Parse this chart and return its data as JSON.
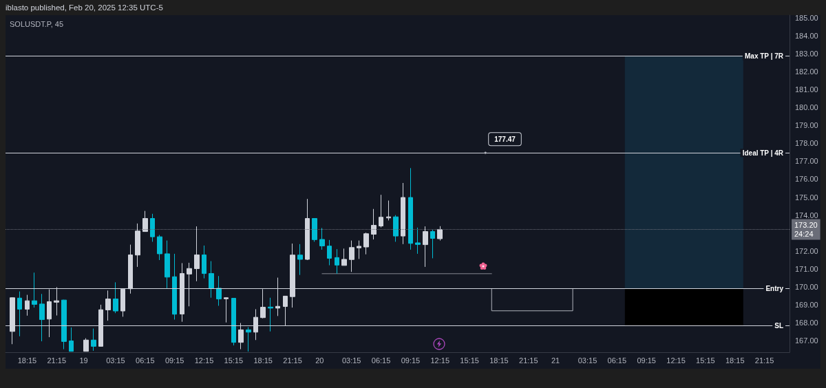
{
  "chart_data": {
    "type": "candlestick",
    "title": "iblasto published, Feb 20, 2025 12:35 UTC-5",
    "subtitle": "SOLUSDT.P, 45",
    "series": [
      {
        "x": [
          "2025-02-18T16:45",
          "2025-02-18T17:30",
          "2025-02-18T18:15",
          "2025-02-18T19:00",
          "2025-02-18T19:45",
          "2025-02-18T20:30",
          "2025-02-18T21:15",
          "2025-02-18T22:00",
          "2025-02-18T22:45",
          "2025-02-19T00:15",
          "2025-02-19T01:00",
          "2025-02-19T01:45",
          "2025-02-19T02:30",
          "2025-02-19T03:15",
          "2025-02-19T04:00",
          "2025-02-19T04:45",
          "2025-02-19T05:30",
          "2025-02-19T06:15",
          "2025-02-19T07:00",
          "2025-02-19T07:45",
          "2025-02-19T08:30",
          "2025-02-19T09:15",
          "2025-02-19T10:00",
          "2025-02-19T10:45",
          "2025-02-19T11:30",
          "2025-02-19T12:15",
          "2025-02-19T13:00",
          "2025-02-19T13:45",
          "2025-02-19T14:30",
          "2025-02-19T15:15",
          "2025-02-19T16:00",
          "2025-02-19T16:45",
          "2025-02-19T17:30",
          "2025-02-19T18:15",
          "2025-02-19T19:00",
          "2025-02-19T19:45",
          "2025-02-19T20:30",
          "2025-02-19T21:15",
          "2025-02-19T22:00",
          "2025-02-19T22:45",
          "2025-02-19T23:30",
          "2025-02-20T00:15",
          "2025-02-20T01:00",
          "2025-02-20T01:45",
          "2025-02-20T02:30",
          "2025-02-20T03:15",
          "2025-02-20T04:00",
          "2025-02-20T04:45",
          "2025-02-20T05:30",
          "2025-02-20T06:15",
          "2025-02-20T07:00",
          "2025-02-20T07:45",
          "2025-02-20T08:30",
          "2025-02-20T09:15",
          "2025-02-20T10:00",
          "2025-02-20T10:45",
          "2025-02-20T11:30",
          "2025-02-20T12:15"
        ],
        "ohlc": [
          [
            167.51,
            169.41,
            166.8,
            169.39
          ],
          [
            169.37,
            169.74,
            167.24,
            168.75
          ],
          [
            168.75,
            169.55,
            168.39,
            169.22
          ],
          [
            169.22,
            170.79,
            168.84,
            169.02
          ],
          [
            169.04,
            169.6,
            166.96,
            168.17
          ],
          [
            168.2,
            169.86,
            167.19,
            169.17
          ],
          [
            169.14,
            169.98,
            168.4,
            169.22
          ],
          [
            169.26,
            169.28,
            166.52,
            166.95
          ],
          [
            166.98,
            167.73,
            166.4,
            166.4
          ],
          [
            166.4,
            167.13,
            166.4,
            167.03
          ],
          [
            167.03,
            167.67,
            166.43,
            166.68
          ],
          [
            166.68,
            169.0,
            166.68,
            168.72
          ],
          [
            168.71,
            169.79,
            168.11,
            169.32
          ],
          [
            169.32,
            170.25,
            168.53,
            168.65
          ],
          [
            168.65,
            169.87,
            168.33,
            169.87
          ],
          [
            169.89,
            172.35,
            169.62,
            171.78
          ],
          [
            171.77,
            173.53,
            171.11,
            173.11
          ],
          [
            173.08,
            174.23,
            173.08,
            173.81
          ],
          [
            173.81,
            174.07,
            172.51,
            172.79
          ],
          [
            172.79,
            172.89,
            171.49,
            171.84
          ],
          [
            171.84,
            172.58,
            169.92,
            170.54
          ],
          [
            170.56,
            171.84,
            168.17,
            168.47
          ],
          [
            168.48,
            171.32,
            168.05,
            170.74
          ],
          [
            170.71,
            171.34,
            168.91,
            171.02
          ],
          [
            171.01,
            173.37,
            170.31,
            171.78
          ],
          [
            171.78,
            172.3,
            170.47,
            170.74
          ],
          [
            170.74,
            171.43,
            169.39,
            169.92
          ],
          [
            169.92,
            170.6,
            168.94,
            169.32
          ],
          [
            169.33,
            169.41,
            168.01,
            169.39
          ],
          [
            169.36,
            169.36,
            166.73,
            166.9
          ],
          [
            166.9,
            167.98,
            166.52,
            167.6
          ],
          [
            167.6,
            167.75,
            166.39,
            167.47
          ],
          [
            167.47,
            168.75,
            167.03,
            168.3
          ],
          [
            168.28,
            169.87,
            168.24,
            168.86
          ],
          [
            168.87,
            169.39,
            167.51,
            168.81
          ],
          [
            168.81,
            170.51,
            168.37,
            168.91
          ],
          [
            168.9,
            169.48,
            167.82,
            169.48
          ],
          [
            169.45,
            172.41,
            168.84,
            171.77
          ],
          [
            171.77,
            172.38,
            170.66,
            171.53
          ],
          [
            171.53,
            174.9,
            171.49,
            173.81
          ],
          [
            173.81,
            173.81,
            172.51,
            172.63
          ],
          [
            172.64,
            173.28,
            172.07,
            172.28
          ],
          [
            172.27,
            172.61,
            171.2,
            171.59
          ],
          [
            171.63,
            172.1,
            170.73,
            171.21
          ],
          [
            171.19,
            172.13,
            171.19,
            171.53
          ],
          [
            171.52,
            172.58,
            170.83,
            172.19
          ],
          [
            172.17,
            172.58,
            171.55,
            172.26
          ],
          [
            172.22,
            173.02,
            171.81,
            172.96
          ],
          [
            172.93,
            174.34,
            172.64,
            173.43
          ],
          [
            173.39,
            175.13,
            173.31,
            173.88
          ],
          [
            173.84,
            174.81,
            173.7,
            173.9
          ],
          [
            173.9,
            174.0,
            172.51,
            172.83
          ],
          [
            172.83,
            175.79,
            172.38,
            174.98
          ],
          [
            174.98,
            176.62,
            172.07,
            172.42
          ],
          [
            172.45,
            173.3,
            171.84,
            172.36
          ],
          [
            172.35,
            173.37,
            171.11,
            173.08
          ],
          [
            173.08,
            173.21,
            171.59,
            172.7
          ],
          [
            172.68,
            173.38,
            172.58,
            173.2
          ]
        ],
        "colors": [
          "#d1d4dc",
          "#00bcd4",
          "#d1d4dc",
          "#00bcd4",
          "#00bcd4",
          "#d1d4dc",
          "#d1d4dc",
          "#00bcd4",
          "#00bcd4",
          "#d1d4dc",
          "#00bcd4",
          "#d1d4dc",
          "#d1d4dc",
          "#00bcd4",
          "#d1d4dc",
          "#d1d4dc",
          "#d1d4dc",
          "#d1d4dc",
          "#00bcd4",
          "#00bcd4",
          "#00bcd4",
          "#00bcd4",
          "#d1d4dc",
          "#d1d4dc",
          "#d1d4dc",
          "#00bcd4",
          "#00bcd4",
          "#00bcd4",
          "#d1d4dc",
          "#00bcd4",
          "#d1d4dc",
          "#00bcd4",
          "#d1d4dc",
          "#d1d4dc",
          "#00bcd4",
          "#d1d4dc",
          "#d1d4dc",
          "#d1d4dc",
          "#00bcd4",
          "#d1d4dc",
          "#00bcd4",
          "#00bcd4",
          "#00bcd4",
          "#00bcd4",
          "#d1d4dc",
          "#d1d4dc",
          "#d1d4dc",
          "#d1d4dc",
          "#d1d4dc",
          "#d1d4dc",
          "#d1d4dc",
          "#00bcd4",
          "#d1d4dc",
          "#00bcd4",
          "#00bcd4",
          "#d1d4dc",
          "#00bcd4",
          "#d1d4dc"
        ]
      },
      {
        "type": "line",
        "x": [
          "2025-02-20T00:15",
          "2025-02-20T17:30"
        ],
        "values": [
          170.73,
          170.73
        ],
        "color": "#868993"
      },
      {
        "type": "line",
        "x": [
          "2025-02-20T17:30",
          "2025-02-20T17:30",
          "2025-02-21T01:45",
          "2025-02-21T01:45"
        ],
        "values": [
          169.9,
          168.66,
          168.66,
          169.9
        ],
        "color": "#b2b5be"
      }
    ],
    "xlim": [
      "2025-02-18T16:03",
      "2025-02-21T23:48"
    ],
    "xticks": [
      {
        "value": "2025-02-18T18:15",
        "label": "18:15"
      },
      {
        "value": "2025-02-18T21:15",
        "label": "21:15"
      },
      {
        "value": "2025-02-19",
        "label": "19"
      },
      {
        "value": "2025-02-19T03:15",
        "label": "03:15"
      },
      {
        "value": "2025-02-19T06:15",
        "label": "06:15"
      },
      {
        "value": "2025-02-19T09:15",
        "label": "09:15"
      },
      {
        "value": "2025-02-19T12:15",
        "label": "12:15"
      },
      {
        "value": "2025-02-19T15:15",
        "label": "15:15"
      },
      {
        "value": "2025-02-19T18:15",
        "label": "18:15"
      },
      {
        "value": "2025-02-19T21:15",
        "label": "21:15"
      },
      {
        "value": "2025-02-20",
        "label": "20"
      },
      {
        "value": "2025-02-20T03:15",
        "label": "03:15"
      },
      {
        "value": "2025-02-20T06:15",
        "label": "06:15"
      },
      {
        "value": "2025-02-20T09:15",
        "label": "09:15"
      },
      {
        "value": "2025-02-20T12:15",
        "label": "12:15"
      },
      {
        "value": "2025-02-20T15:15",
        "label": "15:15"
      },
      {
        "value": "2025-02-20T18:15",
        "label": "18:15"
      },
      {
        "value": "2025-02-20T21:15",
        "label": "21:15"
      },
      {
        "value": "2025-02-21",
        "label": "21"
      },
      {
        "value": "2025-02-21T03:15",
        "label": "03:15"
      },
      {
        "value": "2025-02-21T06:15",
        "label": "06:15"
      },
      {
        "value": "2025-02-21T09:15",
        "label": "09:15"
      },
      {
        "value": "2025-02-21T12:15",
        "label": "12:15"
      },
      {
        "value": "2025-02-21T15:15",
        "label": "15:15"
      },
      {
        "value": "2025-02-21T18:15",
        "label": "18:15"
      },
      {
        "value": "2025-02-21T21:15",
        "label": "21:15"
      }
    ],
    "ylim": [
      166.35,
      185.15
    ],
    "yticks": [
      {
        "value": 167,
        "label": "167.00"
      },
      {
        "value": 168,
        "label": "168.00"
      },
      {
        "value": 169,
        "label": "169.00"
      },
      {
        "value": 170,
        "label": "170.00"
      },
      {
        "value": 171,
        "label": "171.00"
      },
      {
        "value": 172,
        "label": "172.00"
      },
      {
        "value": 174,
        "label": "174.00"
      },
      {
        "value": 175,
        "label": "175.00"
      },
      {
        "value": 176,
        "label": "176.00"
      },
      {
        "value": 177,
        "label": "177.00"
      },
      {
        "value": 178,
        "label": "178.00"
      },
      {
        "value": 179,
        "label": "179.00"
      },
      {
        "value": 180,
        "label": "180.00"
      },
      {
        "value": 181,
        "label": "181.00"
      },
      {
        "value": 182,
        "label": "182.00"
      },
      {
        "value": 183,
        "label": "183.00"
      },
      {
        "value": 184,
        "label": "184.00"
      },
      {
        "value": 185,
        "label": "185.00"
      }
    ],
    "ref_lines": [
      {
        "axis": "y",
        "value": 182.87,
        "label": "Max TP | 7R",
        "color": "#d1d4dc"
      },
      {
        "axis": "y",
        "value": 177.47,
        "label": "Ideal TP | 4R",
        "color": "#d1d4dc"
      },
      {
        "axis": "y",
        "value": 169.9,
        "label": "Entry",
        "color": "#d1d4dc"
      },
      {
        "axis": "y",
        "value": 167.83,
        "label": "SL",
        "color": "#d1d4dc"
      },
      {
        "axis": "y",
        "value": 173.2,
        "label": "173.20\n24:24",
        "color": "#6a6d78",
        "line_style": "dotted"
      }
    ],
    "bands": [
      {
        "axis": "y",
        "from": 169.9,
        "to": 182.87,
        "color": "#13293a"
      },
      {
        "axis": "y",
        "from": 167.83,
        "to": 169.9,
        "color": "#000000"
      }
    ],
    "annotations": [
      {
        "text": "177.47",
        "x": "2025-02-20T16:52",
        "y": 177.47
      }
    ]
  }
}
